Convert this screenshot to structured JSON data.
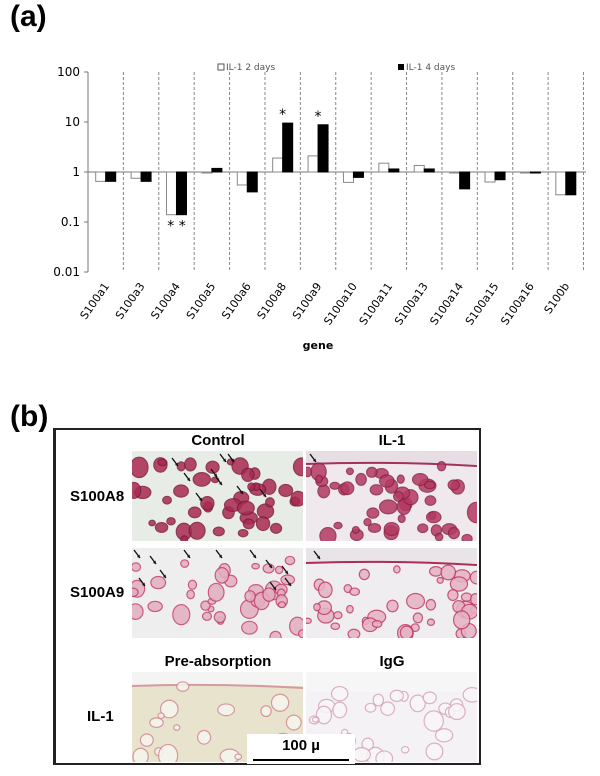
{
  "panel_a": {
    "label": "(a)"
  },
  "panel_b": {
    "label": "(b)",
    "columns_top": [
      "Control",
      "IL-1"
    ],
    "columns_bottom": [
      "Pre-absorption",
      "IgG"
    ],
    "rows": [
      "S100A8",
      "S100A9",
      "IL-1"
    ],
    "scale_bar": "100 µ"
  },
  "chart_data": {
    "type": "bar",
    "title": "",
    "xlabel": "gene",
    "ylabel": "",
    "yscale": "log",
    "ylim": [
      0.01,
      100
    ],
    "yticks": [
      "100",
      "10",
      "1",
      "0.1",
      "0.01"
    ],
    "categories": [
      "S100a1",
      "S100a3",
      "S100a4",
      "S100a5",
      "S100a6",
      "S100a8",
      "S100a9",
      "S100a10",
      "S100a11",
      "S100a13",
      "S100a14",
      "S100a15",
      "S100a16",
      "S100b"
    ],
    "series": [
      {
        "name": "IL-1 2 days",
        "color": "#ffffff",
        "values": [
          0.65,
          0.75,
          0.14,
          0.98,
          0.55,
          1.9,
          2.1,
          0.62,
          1.5,
          1.35,
          0.98,
          0.63,
          0.98,
          0.35
        ]
      },
      {
        "name": "IL-1 4 days",
        "color": "#000000",
        "values": [
          0.65,
          0.65,
          0.14,
          1.18,
          0.4,
          9.5,
          8.8,
          0.78,
          1.15,
          1.15,
          0.46,
          0.7,
          0.98,
          0.35
        ]
      }
    ],
    "annotations": [
      {
        "category": "S100a4",
        "text": "* *"
      },
      {
        "category": "S100a8",
        "text": "*"
      },
      {
        "category": "S100a9",
        "text": "*"
      }
    ],
    "legend": [
      "IL-1 2 days",
      "IL-1 4 days"
    ],
    "legend_position": "top",
    "grid": "vertical dashed separators between categories"
  }
}
